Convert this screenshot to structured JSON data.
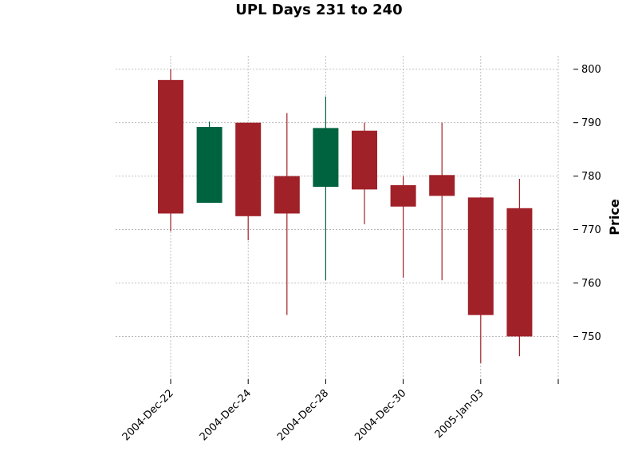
{
  "chart_data": {
    "type": "candlestick",
    "title": "UPL Days 231 to 240",
    "xlabel": "",
    "ylabel": "Price",
    "ylim": [
      742,
      802.5
    ],
    "y_ticks": [
      750,
      760,
      770,
      780,
      790,
      800
    ],
    "y_axis_side": "right",
    "grid": true,
    "colors": {
      "up": "#006340",
      "down": "#a02128",
      "grid": "#b0b0b0"
    },
    "x_tick_labels": [
      {
        "index": 0,
        "label": "2004-Dec-22"
      },
      {
        "index": 2,
        "label": "2004-Dec-24"
      },
      {
        "index": 4,
        "label": "2004-Dec-28"
      },
      {
        "index": 6,
        "label": "2004-Dec-30"
      },
      {
        "index": 8,
        "label": "2005-Jan-03"
      },
      {
        "index": 10,
        "label": ""
      }
    ],
    "candles": [
      {
        "open": 798,
        "high": 800,
        "low": 769.7,
        "close": 773
      },
      {
        "open": 775,
        "high": 790.2,
        "low": 775,
        "close": 789.2
      },
      {
        "open": 790,
        "high": 790,
        "low": 768,
        "close": 772.5
      },
      {
        "open": 780,
        "high": 791.8,
        "low": 754,
        "close": 773
      },
      {
        "open": 778,
        "high": 794.9,
        "low": 760.5,
        "close": 789
      },
      {
        "open": 788.5,
        "high": 790,
        "low": 771,
        "close": 777.5
      },
      {
        "open": 778.3,
        "high": 780,
        "low": 761,
        "close": 774.3
      },
      {
        "open": 780.2,
        "high": 790,
        "low": 760.5,
        "close": 776.3
      },
      {
        "open": 776,
        "high": 776,
        "low": 745,
        "close": 754
      },
      {
        "open": 774,
        "high": 779.5,
        "low": 746.3,
        "close": 750
      }
    ]
  }
}
